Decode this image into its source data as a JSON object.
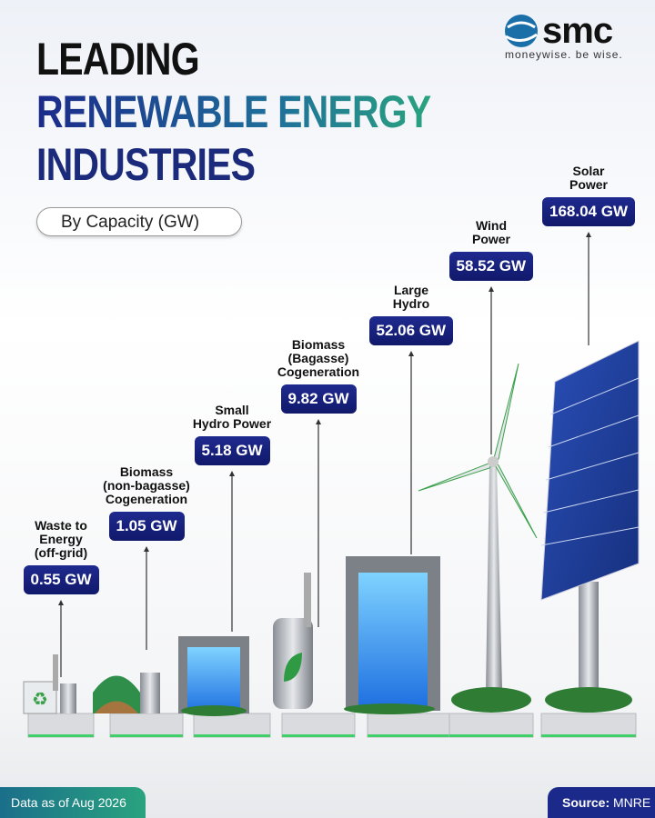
{
  "logo": {
    "name": "smc",
    "tagline": "moneywise. be wise."
  },
  "header": {
    "title": [
      "LEADING",
      "RENEWABLE ENERGY",
      "INDUSTRIES"
    ],
    "subtitle": "By Capacity (GW)"
  },
  "items": [
    {
      "label": [
        "Waste to",
        "Energy",
        "(off-grid)"
      ],
      "value": "0.55 GW"
    },
    {
      "label": [
        "Biomass",
        "(non-bagasse)",
        "Cogeneration"
      ],
      "value": "1.05 GW"
    },
    {
      "label": [
        "Small",
        "Hydro Power"
      ],
      "value": "5.18 GW"
    },
    {
      "label": [
        "Biomass",
        "(Bagasse)",
        "Cogeneration"
      ],
      "value": "9.82 GW"
    },
    {
      "label": [
        "Large",
        "Hydro"
      ],
      "value": "52.06 GW"
    },
    {
      "label": [
        "Wind",
        "Power"
      ],
      "value": "58.52 GW"
    },
    {
      "label": [
        "Solar",
        "Power"
      ],
      "value": "168.04 GW"
    }
  ],
  "footer": {
    "note": "Data as of Aug 2026",
    "source_label": "Source:",
    "source": "MNRE"
  }
}
